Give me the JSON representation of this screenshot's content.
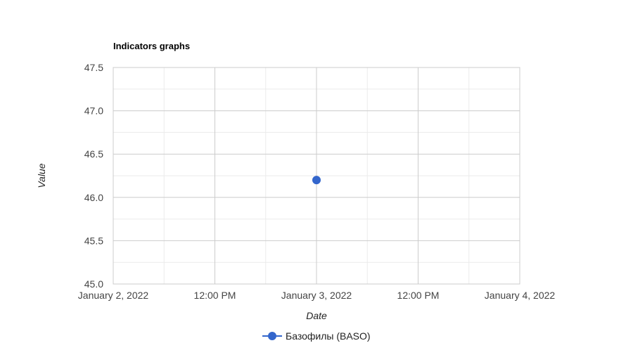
{
  "chart_data": {
    "type": "scatter",
    "title": "Indicators graphs",
    "xlabel": "Date",
    "ylabel": "Value",
    "x_type": "datetime",
    "xlim": [
      "2022-01-02T00:00",
      "2022-01-04T00:00"
    ],
    "ylim": [
      45.0,
      47.5
    ],
    "x_ticks": [
      {
        "value": "2022-01-02T00:00",
        "label": "January 2, 2022"
      },
      {
        "value": "2022-01-02T12:00",
        "label": "12:00 PM"
      },
      {
        "value": "2022-01-03T00:00",
        "label": "January 3, 2022"
      },
      {
        "value": "2022-01-03T12:00",
        "label": "12:00 PM"
      },
      {
        "value": "2022-01-04T00:00",
        "label": "January 4, 2022"
      }
    ],
    "y_ticks": [
      {
        "value": 45.0,
        "label": "45.0"
      },
      {
        "value": 45.5,
        "label": "45.5"
      },
      {
        "value": 46.0,
        "label": "46.0"
      },
      {
        "value": 46.5,
        "label": "46.5"
      },
      {
        "value": 47.0,
        "label": "47.0"
      },
      {
        "value": 47.5,
        "label": "47.5"
      }
    ],
    "grid": true,
    "legend_position": "bottom",
    "series": [
      {
        "name": "Базофилы (BASO)",
        "color": "#3366cc",
        "points": [
          {
            "x": "2022-01-03T00:00",
            "y": 46.2
          }
        ]
      }
    ]
  }
}
